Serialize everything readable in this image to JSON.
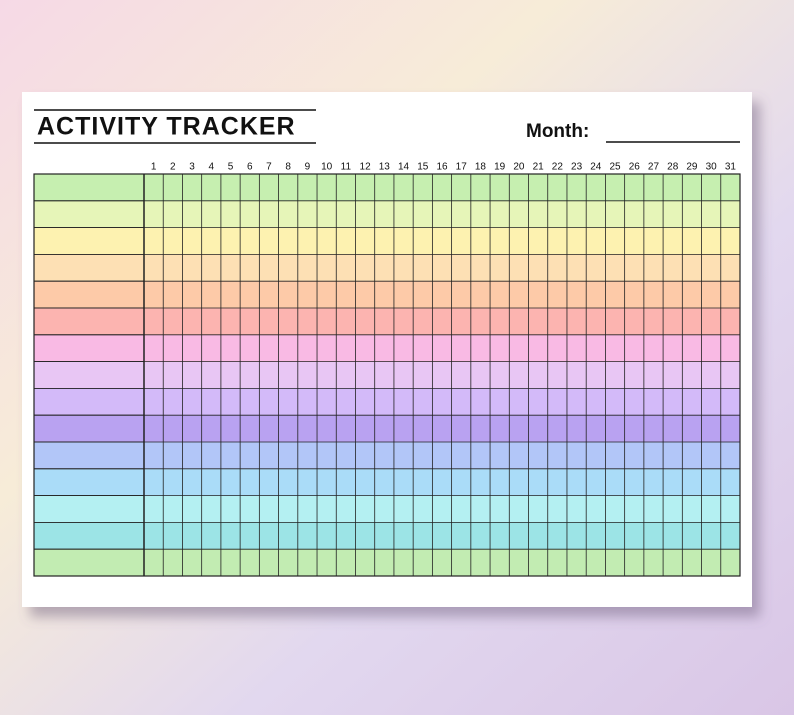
{
  "header": {
    "title": "ACTIVITY TRACKER",
    "month_label": "Month:"
  },
  "days": [
    1,
    2,
    3,
    4,
    5,
    6,
    7,
    8,
    9,
    10,
    11,
    12,
    13,
    14,
    15,
    16,
    17,
    18,
    19,
    20,
    21,
    22,
    23,
    24,
    25,
    26,
    27,
    28,
    29,
    30,
    31
  ],
  "row_colors": [
    "#c6efb0",
    "#e6f5b8",
    "#fdf2b0",
    "#fde0b4",
    "#fdcaa8",
    "#fcb4b0",
    "#f9bae4",
    "#e8c6f4",
    "#d3baf9",
    "#b9a2f1",
    "#b2c6f8",
    "#aadcf8",
    "#b4f0f2",
    "#9ce4e6",
    "#c2ecb2"
  ]
}
